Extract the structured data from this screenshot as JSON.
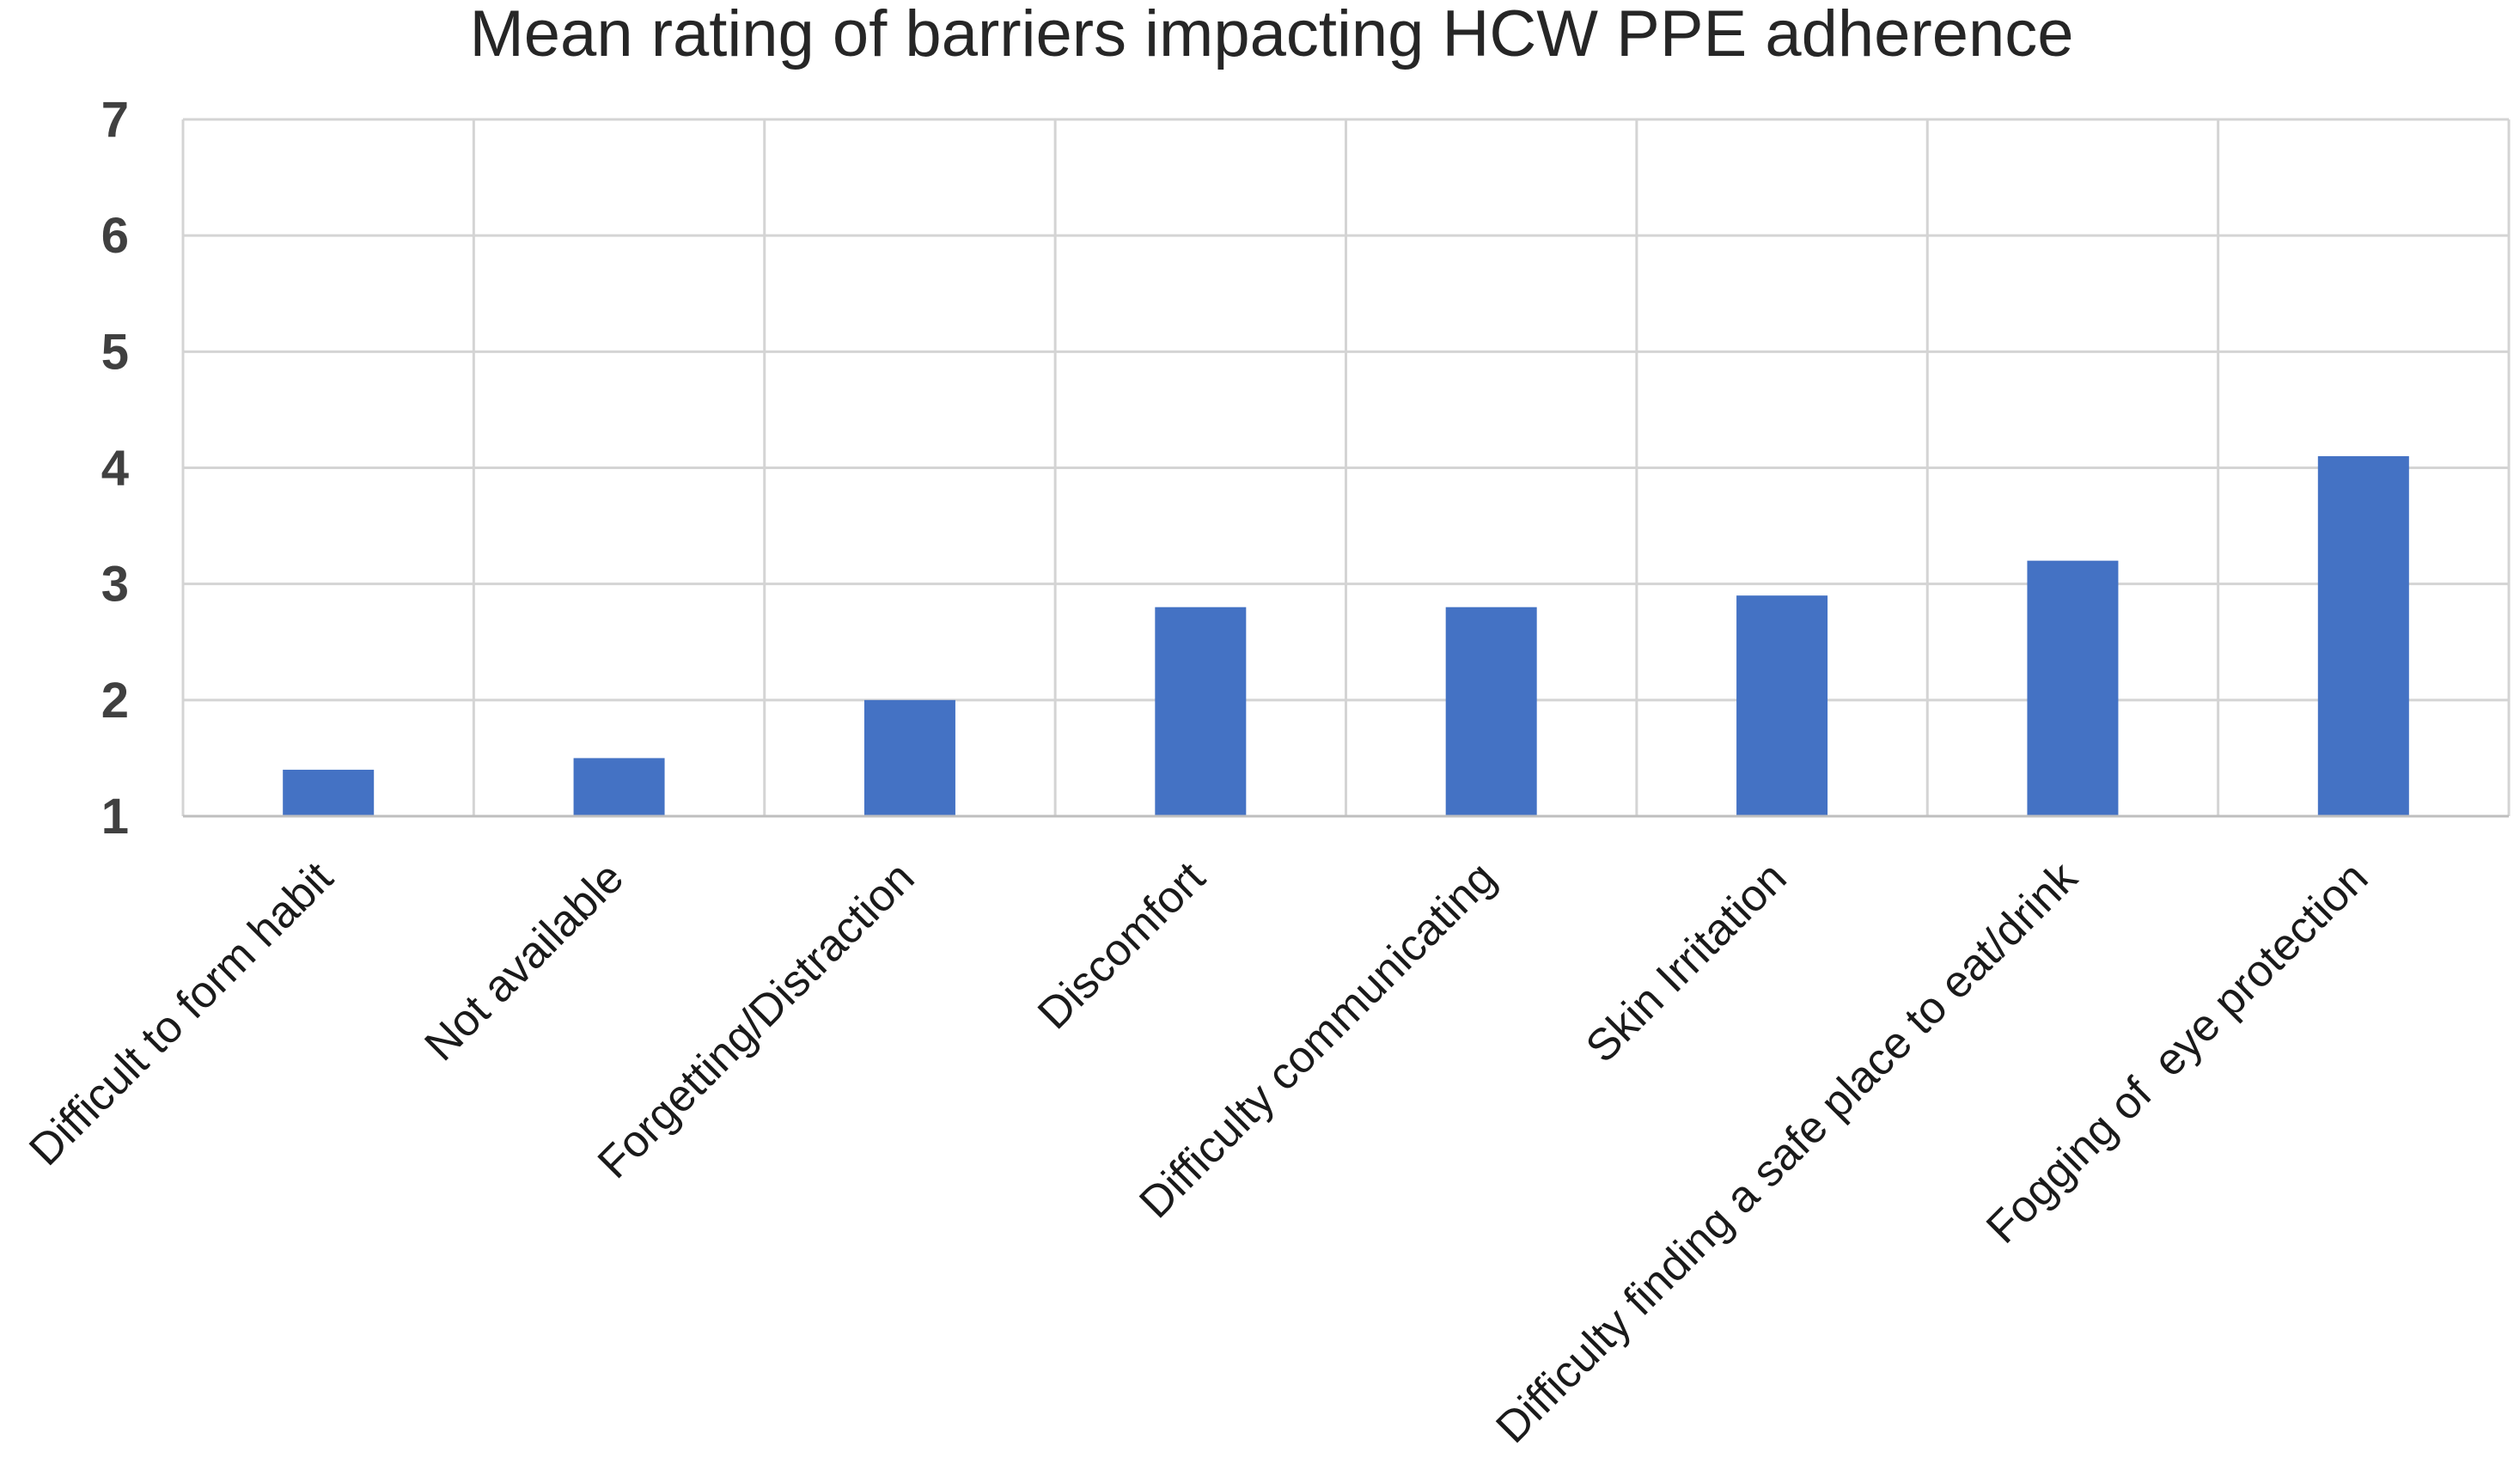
{
  "chart_data": {
    "type": "bar",
    "title": "Mean rating of barriers impacting HCW PPE adherence",
    "xlabel": "",
    "ylabel": "",
    "categories": [
      "Difficult to form habit",
      "Not available",
      "Forgetting/Distraction",
      "Discomfort",
      "Difficulty communicating",
      "Skin Irritation",
      "Difficulty finding a safe place to eat/drink",
      "Fogging of  eye protection"
    ],
    "values": [
      1.4,
      1.5,
      2.0,
      2.8,
      2.8,
      2.9,
      3.2,
      4.1
    ],
    "ylim": [
      1,
      7
    ],
    "yticks": [
      1,
      2,
      3,
      4,
      5,
      6,
      7
    ],
    "grid": true,
    "bar_color": "#4472C4",
    "grid_color": "#D4D4D4",
    "legend": "none"
  }
}
